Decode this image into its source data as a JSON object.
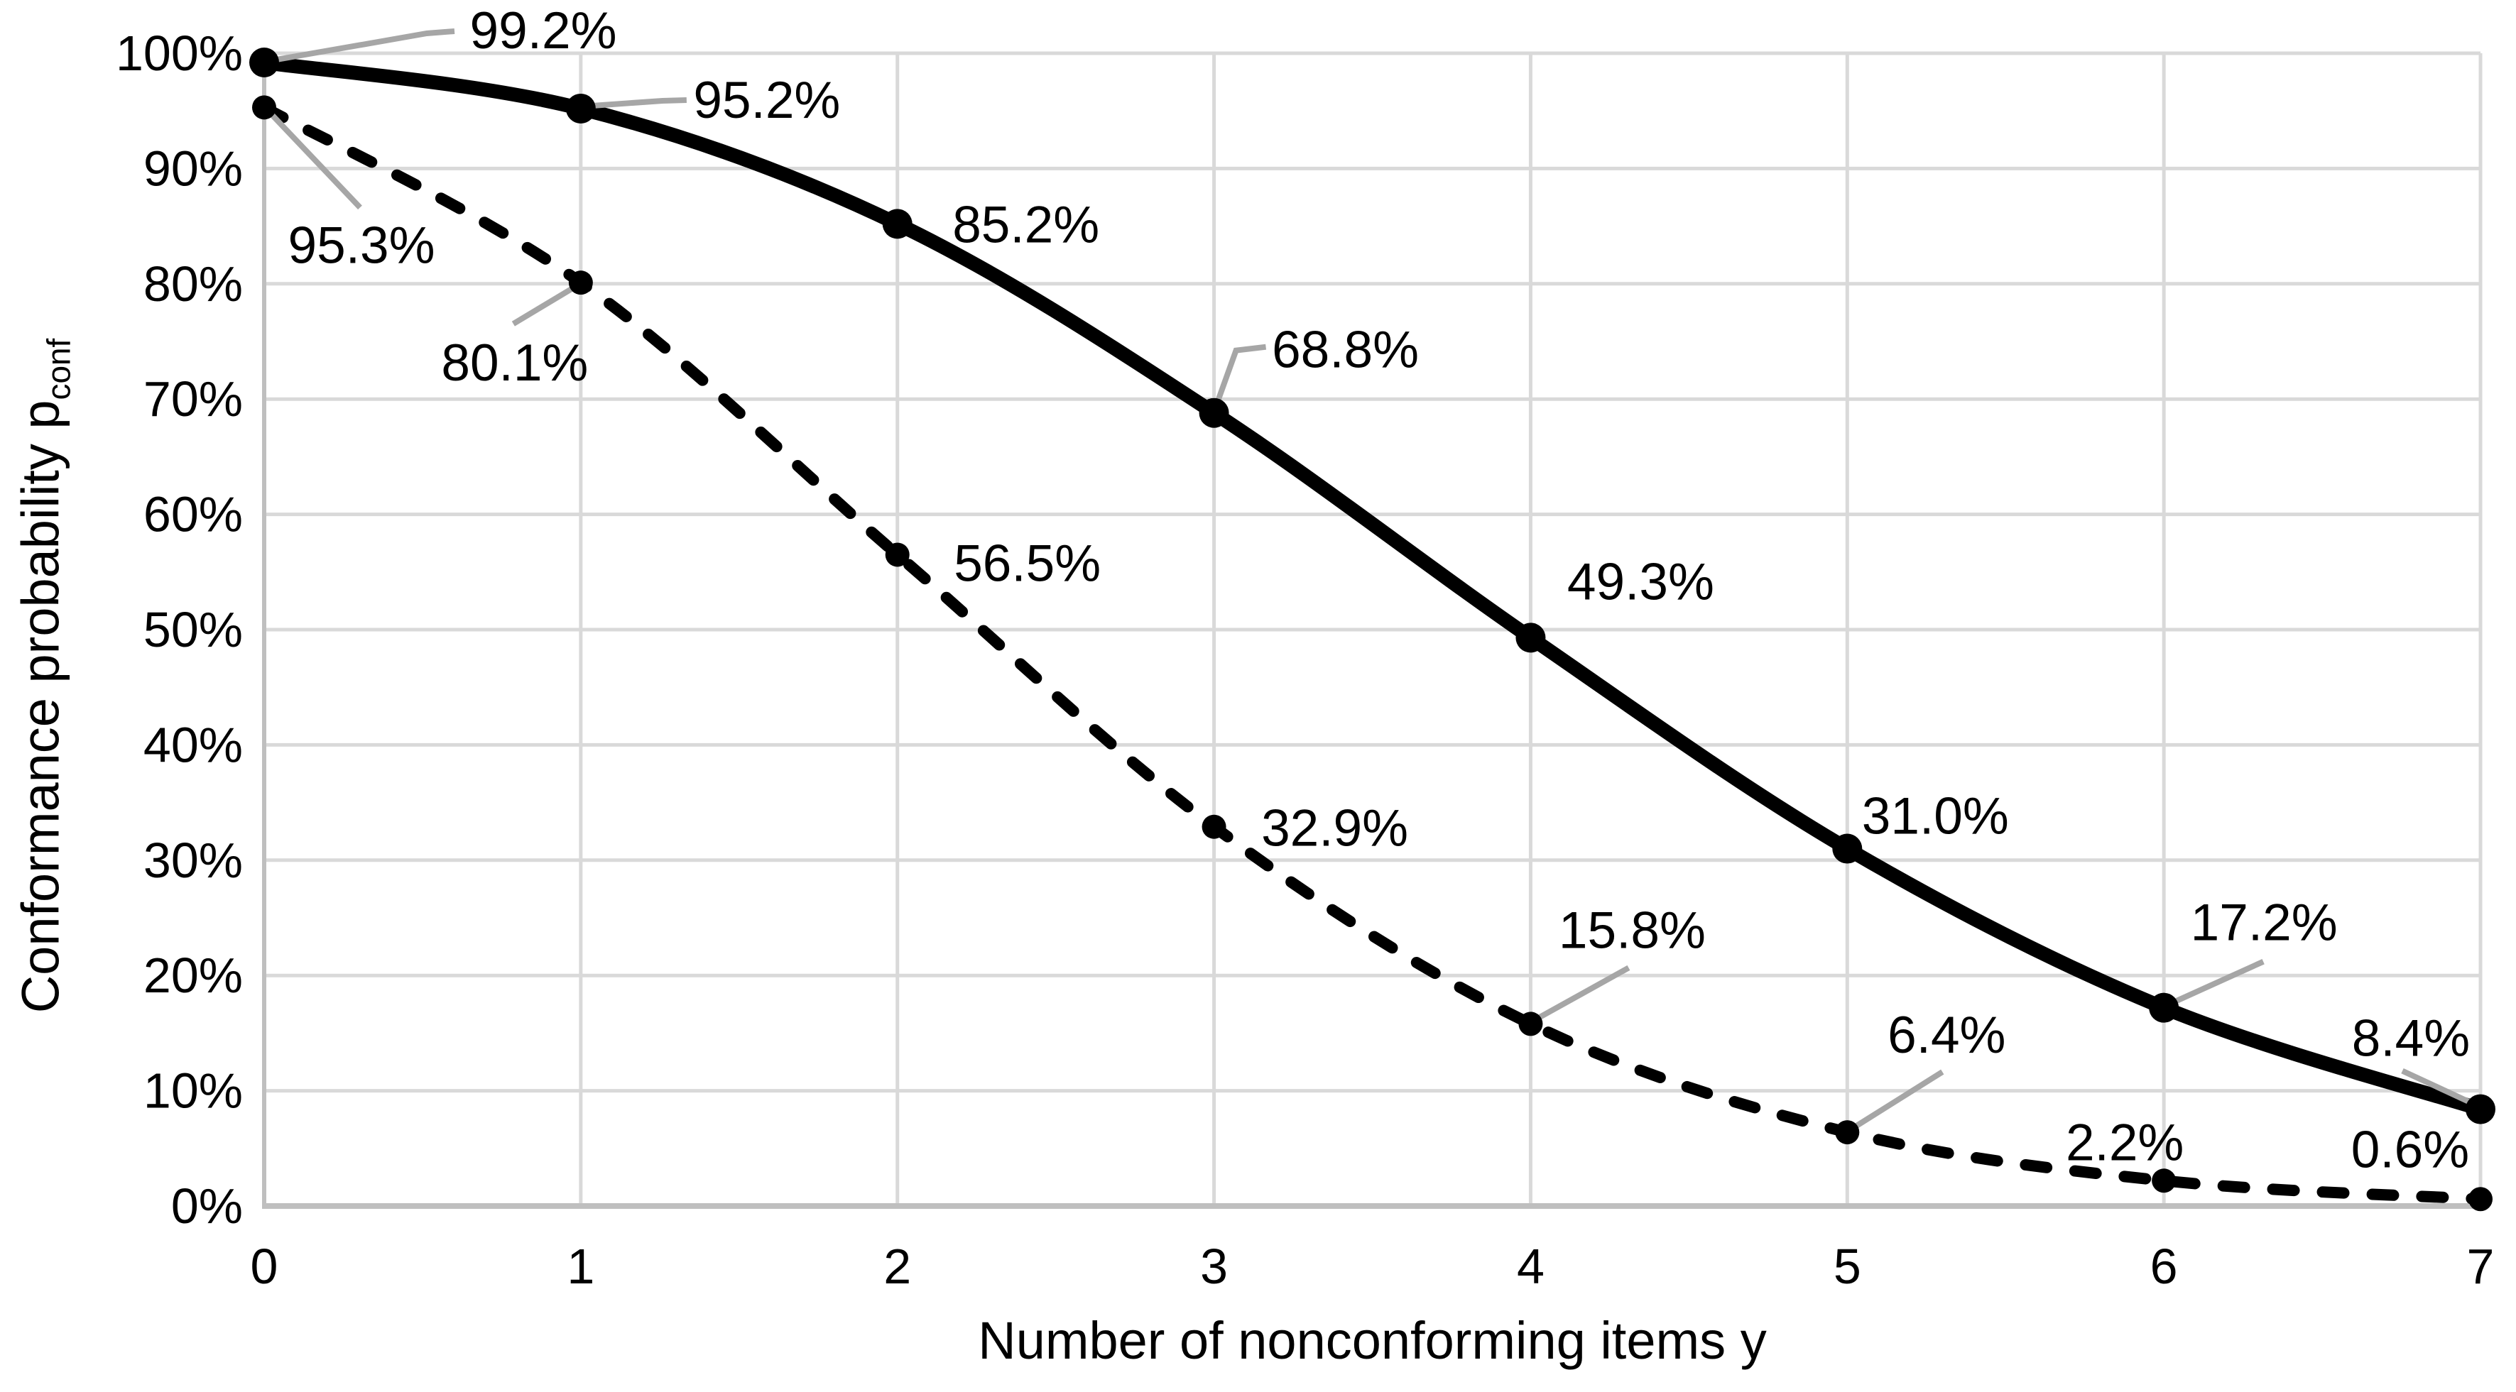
{
  "page": {
    "background": "#ffffff"
  },
  "chart_data": {
    "type": "line",
    "title": "",
    "xlabel": "Number of nonconforming items y",
    "ylabel": "Conformance probability p",
    "ylabel_subscript": "conf",
    "x": [
      0,
      1,
      2,
      3,
      4,
      5,
      6,
      7
    ],
    "x_tick_labels": [
      "0",
      "1",
      "2",
      "3",
      "4",
      "5",
      "6",
      "7"
    ],
    "y_tick_labels": [
      "0%",
      "10%",
      "20%",
      "30%",
      "40%",
      "50%",
      "60%",
      "70%",
      "80%",
      "90%",
      "100%"
    ],
    "ylim": [
      0,
      100
    ],
    "xlim": [
      0,
      7
    ],
    "grid": true,
    "legend": "none",
    "series": [
      {
        "name": "upper solid curve",
        "line_style": "solid",
        "color": "#000000",
        "values": [
          99.2,
          95.2,
          85.2,
          68.8,
          49.3,
          31.0,
          17.2,
          8.4
        ],
        "data_labels": [
          "99.2%",
          "95.2%",
          "85.2%",
          "68.8%",
          "49.3%",
          "31.0%",
          "17.2%",
          "8.4%"
        ]
      },
      {
        "name": "lower dashed curve",
        "line_style": "dashed",
        "color": "#000000",
        "values": [
          95.3,
          80.1,
          56.5,
          32.9,
          15.8,
          6.4,
          2.2,
          0.6
        ],
        "data_labels": [
          "95.3%",
          "80.1%",
          "56.5%",
          "32.9%",
          "15.8%",
          "6.4%",
          "2.2%",
          "0.6%"
        ]
      }
    ],
    "colors": {
      "grid": "#d9d9d9",
      "axis": "#bfbfbf",
      "leader": "#a6a6a6",
      "text": "#000000",
      "background": "#ffffff"
    }
  }
}
